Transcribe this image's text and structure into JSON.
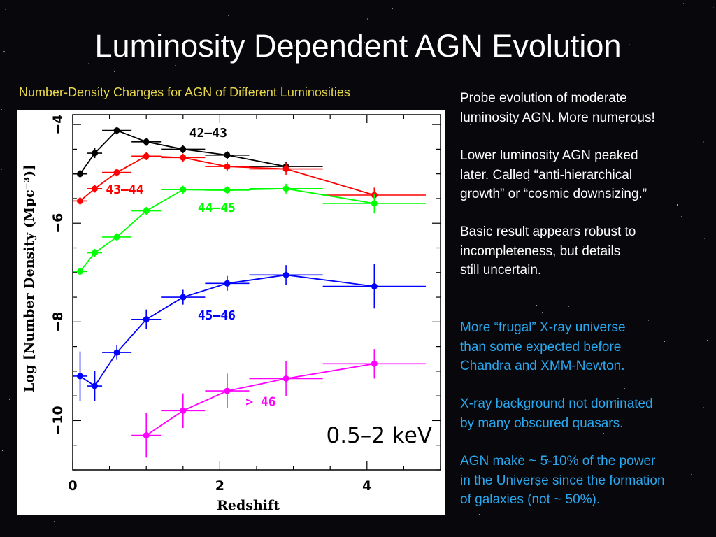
{
  "slide": {
    "title": "Luminosity Dependent AGN Evolution",
    "subtitle": "Number-Density Changes for AGN of Different Luminosities"
  },
  "bullets_white": [
    [
      "Probe evolution of moderate",
      "luminosity AGN. More numerous!"
    ],
    [
      "Lower luminosity AGN peaked",
      "later. Called “anti-hierarchical",
      "growth” or “cosmic downsizing.”"
    ],
    [
      "Basic result appears robust to",
      "incompleteness, but details",
      "still uncertain."
    ]
  ],
  "bullets_cyan": [
    [
      "More “frugal” X-ray universe",
      "than some expected before",
      "Chandra and XMM-Newton."
    ],
    [
      "X-ray background not dominated",
      "by many obscured quasars."
    ],
    [
      "AGN make ~ 5-10% of the power",
      "in the Universe since the formation",
      "of galaxies (not ~ 50%)."
    ]
  ],
  "colors": {
    "title": "#ffffff",
    "subtitle": "#e8d84a",
    "bullet": "#ffffff",
    "bullet_cyan": "#29a8ee"
  },
  "chart_data": {
    "type": "line",
    "xlabel": "Redshift",
    "ylabel": "Log [Number Density (Mpc⁻³)]",
    "xlim": [
      0,
      5
    ],
    "ylim": [
      -11,
      -3.8
    ],
    "xticks": [
      0,
      2,
      4
    ],
    "yticks": [
      -4,
      -6,
      -8,
      -10
    ],
    "band_label": "0.5–2 keV",
    "series": [
      {
        "name": "42–43",
        "color": "#000000",
        "x": [
          0.1,
          0.3,
          0.6,
          1.0,
          1.5,
          2.1,
          2.9
        ],
        "y": [
          -5.0,
          -4.58,
          -4.12,
          -4.35,
          -4.5,
          -4.62,
          -4.85
        ],
        "xerr": [
          0.1,
          0.1,
          0.2,
          0.2,
          0.3,
          0.3,
          0.5
        ],
        "yerr": [
          0.08,
          0.1,
          0.08,
          0.08,
          0.08,
          0.08,
          0.1
        ]
      },
      {
        "name": "43–44",
        "color": "#ff0000",
        "x": [
          0.1,
          0.3,
          0.6,
          1.0,
          1.5,
          2.1,
          2.9,
          4.1
        ],
        "y": [
          -5.55,
          -5.3,
          -4.97,
          -4.64,
          -4.67,
          -4.85,
          -4.9,
          -5.43
        ],
        "xerr": [
          0.1,
          0.1,
          0.2,
          0.2,
          0.3,
          0.3,
          0.5,
          0.7
        ],
        "yerr": [
          0.08,
          0.08,
          0.08,
          0.08,
          0.08,
          0.1,
          0.12,
          0.15
        ]
      },
      {
        "name": "44–45",
        "color": "#00ff00",
        "x": [
          0.1,
          0.3,
          0.6,
          1.0,
          1.5,
          2.1,
          2.9,
          4.1
        ],
        "y": [
          -6.98,
          -6.6,
          -6.28,
          -5.75,
          -5.32,
          -5.33,
          -5.3,
          -5.6
        ],
        "xerr": [
          0.1,
          0.1,
          0.2,
          0.2,
          0.3,
          0.3,
          0.5,
          0.7
        ],
        "yerr": [
          0.08,
          0.08,
          0.08,
          0.08,
          0.08,
          0.08,
          0.1,
          0.2
        ]
      },
      {
        "name": "45–46",
        "color": "#0000ff",
        "x": [
          0.1,
          0.3,
          0.6,
          1.0,
          1.5,
          2.1,
          2.9,
          4.1
        ],
        "y": [
          -9.1,
          -9.3,
          -8.62,
          -7.95,
          -7.5,
          -7.22,
          -7.05,
          -7.28
        ],
        "xerr": [
          0.1,
          0.1,
          0.2,
          0.2,
          0.3,
          0.3,
          0.5,
          0.7
        ],
        "yerr": [
          0.5,
          0.3,
          0.15,
          0.2,
          0.15,
          0.15,
          0.2,
          0.45
        ]
      },
      {
        "name": "> 46",
        "color": "#ff00ff",
        "x": [
          1.0,
          1.5,
          2.1,
          2.9,
          4.1
        ],
        "y": [
          -10.3,
          -9.8,
          -9.4,
          -9.15,
          -8.85
        ],
        "xerr": [
          0.2,
          0.3,
          0.3,
          0.5,
          0.7
        ],
        "yerr": [
          0.45,
          0.35,
          0.35,
          0.35,
          0.3
        ]
      }
    ]
  }
}
